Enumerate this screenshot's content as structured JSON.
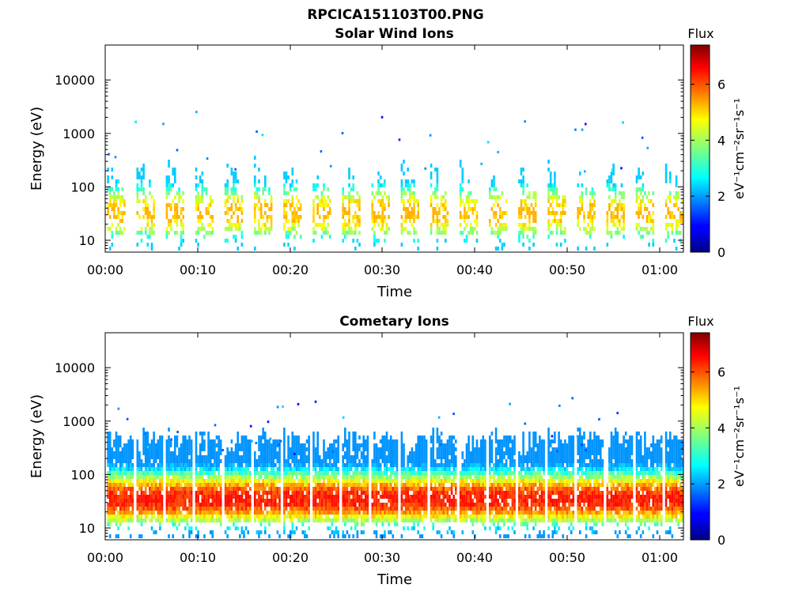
{
  "figure_title": "RPCICA151103T00.PNG",
  "chart_data": [
    {
      "type": "heatmap",
      "title": "Solar Wind Ions",
      "xlabel": "Time",
      "ylabel": "Energy (eV)",
      "x_ticks": [
        "00:00",
        "00:10",
        "00:20",
        "00:30",
        "00:40",
        "00:50",
        "01:00"
      ],
      "x_range_minutes": [
        0,
        63
      ],
      "y_scale": "log",
      "y_ticks": [
        "10",
        "100",
        "1000",
        "10000"
      ],
      "y_range": [
        6,
        45000
      ],
      "colorbar": {
        "label": "Flux",
        "unit": "eV⁻¹cm⁻²sr⁻¹s⁻¹",
        "ticks": [
          "0",
          "2",
          "4",
          "6"
        ],
        "range": [
          0,
          7.4
        ],
        "colormap": "jet"
      },
      "sweep_period_minutes": 3.2,
      "sweep_start_minutes": 0.2,
      "sweeps_count": 20,
      "peak_flux": 5.2,
      "core_energy_eV": 30,
      "grid": false
    },
    {
      "type": "heatmap",
      "title": "Cometary Ions",
      "xlabel": "Time",
      "ylabel": "Energy (eV)",
      "x_ticks": [
        "00:00",
        "00:10",
        "00:20",
        "00:30",
        "00:40",
        "00:50",
        "01:00"
      ],
      "x_range_minutes": [
        0,
        63
      ],
      "y_scale": "log",
      "y_ticks": [
        "10",
        "100",
        "1000",
        "10000"
      ],
      "y_range": [
        6,
        45000
      ],
      "colorbar": {
        "label": "Flux",
        "unit": "eV⁻¹cm⁻²sr⁻¹s⁻¹",
        "ticks": [
          "0",
          "2",
          "4",
          "6"
        ],
        "range": [
          0,
          7.4
        ],
        "colormap": "jet"
      },
      "sweep_period_minutes": 3.2,
      "sweep_start_minutes": 0.2,
      "sweeps_count": 20,
      "peak_flux": 6.4,
      "core_energy_eV": 32,
      "grid": false
    }
  ]
}
